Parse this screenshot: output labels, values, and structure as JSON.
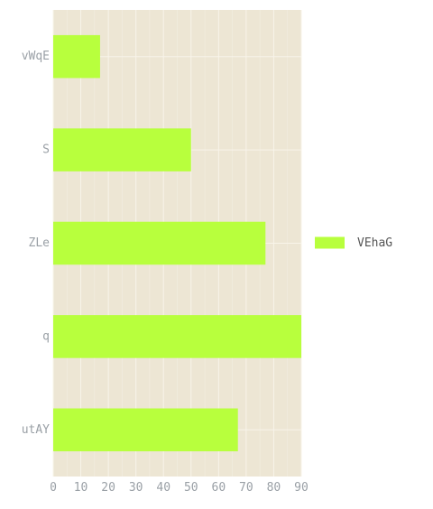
{
  "chart_data": {
    "type": "bar",
    "orientation": "horizontal",
    "categories": [
      "vWqE",
      "S",
      "ZLe",
      "q",
      "utAY"
    ],
    "series": [
      {
        "name": "VEhaG",
        "values": [
          17,
          50,
          77,
          90,
          67
        ],
        "color": "#b8ff3d"
      }
    ],
    "xlim": [
      0,
      90
    ],
    "x_ticks": [
      0,
      10,
      20,
      30,
      40,
      50,
      60,
      70,
      80,
      90
    ],
    "grid": true,
    "legend_position": "right",
    "colors": {
      "panel_background": "#ede6d4",
      "grid": "#f8f4ea",
      "tick_label": "#9aa0a6",
      "legend_text": "#555555"
    }
  }
}
